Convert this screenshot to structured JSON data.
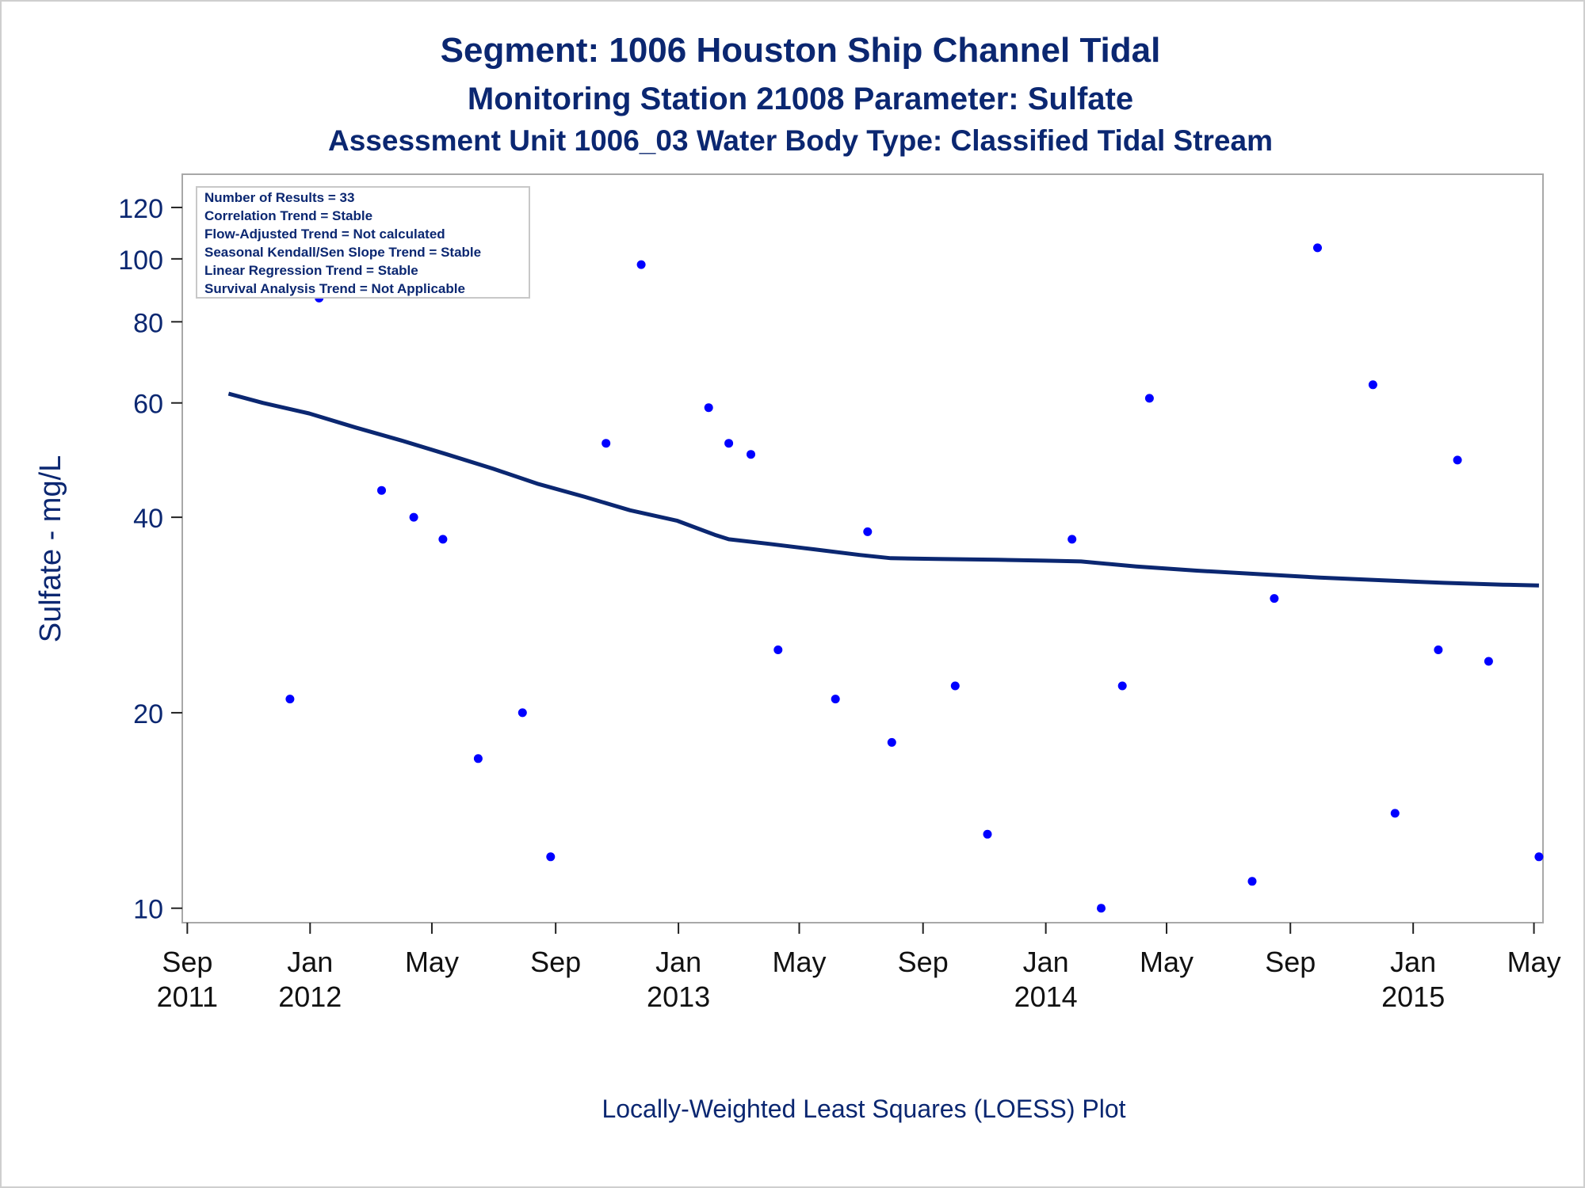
{
  "chart_data": {
    "type": "scatter",
    "titles": [
      "Segment: 1006  Houston Ship Channel Tidal",
      "Monitoring Station 21008 Parameter: Sulfate",
      "Assessment Unit 1006_03   Water Body Type: Classified Tidal Stream"
    ],
    "footnote": "Locally-Weighted Least Squares (LOESS) Plot",
    "ylabel": "Sulfate - mg/L",
    "y_scale": "log",
    "ylim": [
      9.5,
      135
    ],
    "y_ticks": [
      10,
      20,
      40,
      60,
      80,
      100,
      120
    ],
    "xlim": [
      "2011-08-27",
      "2015-05-10"
    ],
    "x_ticks": [
      {
        "date": "2011-09-01",
        "month": "Sep",
        "year": "2011"
      },
      {
        "date": "2012-01-01",
        "month": "Jan",
        "year": "2012"
      },
      {
        "date": "2012-05-01",
        "month": "May",
        "year": ""
      },
      {
        "date": "2012-09-01",
        "month": "Sep",
        "year": ""
      },
      {
        "date": "2013-01-01",
        "month": "Jan",
        "year": "2013"
      },
      {
        "date": "2013-05-01",
        "month": "May",
        "year": ""
      },
      {
        "date": "2013-09-01",
        "month": "Sep",
        "year": ""
      },
      {
        "date": "2014-01-01",
        "month": "Jan",
        "year": "2014"
      },
      {
        "date": "2014-05-01",
        "month": "May",
        "year": ""
      },
      {
        "date": "2014-09-01",
        "month": "Sep",
        "year": ""
      },
      {
        "date": "2015-01-01",
        "month": "Jan",
        "year": "2015"
      },
      {
        "date": "2015-05-01",
        "month": "May",
        "year": ""
      }
    ],
    "inset_lines": [
      "Number of Results = 33",
      "Correlation Trend = Stable",
      "Flow-Adjusted Trend = Not calculated",
      "Seasonal Kendall/Sen Slope Trend = Stable",
      "Linear Regression Trend = Stable",
      "Survival Analysis Trend = Not Applicable"
    ],
    "points": [
      {
        "x": "2011-10-12",
        "y": 127
      },
      {
        "x": "2011-12-12",
        "y": 21
      },
      {
        "x": "2012-01-10",
        "y": 87
      },
      {
        "x": "2012-03-12",
        "y": 44
      },
      {
        "x": "2012-04-13",
        "y": 40
      },
      {
        "x": "2012-05-12",
        "y": 37
      },
      {
        "x": "2012-06-16",
        "y": 17
      },
      {
        "x": "2012-07-30",
        "y": 20
      },
      {
        "x": "2012-08-27",
        "y": 12
      },
      {
        "x": "2012-10-21",
        "y": 52
      },
      {
        "x": "2012-11-25",
        "y": 98
      },
      {
        "x": "2013-01-31",
        "y": 59
      },
      {
        "x": "2013-02-20",
        "y": 52
      },
      {
        "x": "2013-03-14",
        "y": 50
      },
      {
        "x": "2013-04-10",
        "y": 25
      },
      {
        "x": "2013-06-06",
        "y": 21
      },
      {
        "x": "2013-07-08",
        "y": 38
      },
      {
        "x": "2013-08-01",
        "y": 18
      },
      {
        "x": "2013-10-03",
        "y": 22
      },
      {
        "x": "2013-11-04",
        "y": 13
      },
      {
        "x": "2014-01-27",
        "y": 37
      },
      {
        "x": "2014-02-25",
        "y": 10
      },
      {
        "x": "2014-03-18",
        "y": 22
      },
      {
        "x": "2014-04-14",
        "y": 61
      },
      {
        "x": "2014-07-25",
        "y": 11
      },
      {
        "x": "2014-08-16",
        "y": 30
      },
      {
        "x": "2014-09-28",
        "y": 104
      },
      {
        "x": "2014-11-22",
        "y": 64
      },
      {
        "x": "2014-12-14",
        "y": 14
      },
      {
        "x": "2015-01-26",
        "y": 25
      },
      {
        "x": "2015-02-14",
        "y": 49
      },
      {
        "x": "2015-03-17",
        "y": 24
      },
      {
        "x": "2015-05-06",
        "y": 12
      }
    ],
    "loess": [
      {
        "x": "2011-10-12",
        "y": 62
      },
      {
        "x": "2011-11-15",
        "y": 60
      },
      {
        "x": "2011-12-31",
        "y": 57.8
      },
      {
        "x": "2012-02-15",
        "y": 55
      },
      {
        "x": "2012-04-01",
        "y": 52.5
      },
      {
        "x": "2012-05-16",
        "y": 50
      },
      {
        "x": "2012-07-01",
        "y": 47.5
      },
      {
        "x": "2012-08-15",
        "y": 45
      },
      {
        "x": "2012-09-30",
        "y": 43
      },
      {
        "x": "2012-11-14",
        "y": 41
      },
      {
        "x": "2012-12-31",
        "y": 39.5
      },
      {
        "x": "2013-02-06",
        "y": 37.6
      },
      {
        "x": "2013-02-20",
        "y": 37
      },
      {
        "x": "2013-04-01",
        "y": 36.4
      },
      {
        "x": "2013-05-16",
        "y": 35.7
      },
      {
        "x": "2013-06-30",
        "y": 35
      },
      {
        "x": "2013-07-31",
        "y": 34.6
      },
      {
        "x": "2013-09-15",
        "y": 34.5
      },
      {
        "x": "2013-11-14",
        "y": 34.4
      },
      {
        "x": "2013-12-31",
        "y": 34.3
      },
      {
        "x": "2014-02-05",
        "y": 34.2
      },
      {
        "x": "2014-04-01",
        "y": 33.6
      },
      {
        "x": "2014-05-31",
        "y": 33.1
      },
      {
        "x": "2014-07-31",
        "y": 32.7
      },
      {
        "x": "2014-09-30",
        "y": 32.3
      },
      {
        "x": "2014-11-30",
        "y": 32
      },
      {
        "x": "2015-01-31",
        "y": 31.7
      },
      {
        "x": "2015-03-31",
        "y": 31.5
      },
      {
        "x": "2015-05-06",
        "y": 31.4
      }
    ],
    "grid": false,
    "colors": {
      "text": "#0b2771",
      "marker": "#0000ff",
      "line": "#0b2771",
      "frame": "#a8a8a8"
    }
  }
}
